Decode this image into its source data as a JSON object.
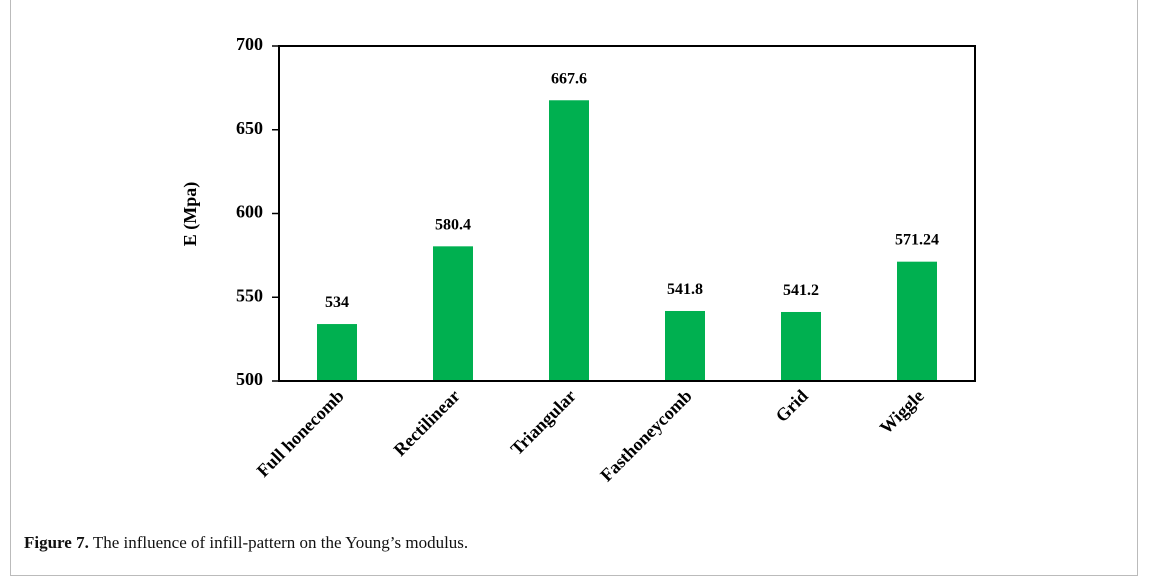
{
  "chart_data": {
    "type": "bar",
    "ylabel": "E (Mpa)",
    "categories": [
      "Full honecomb",
      "Rectilinear",
      "Triangular",
      "Fasthoneycomb",
      "Grid",
      "Wiggle"
    ],
    "values": [
      534,
      580.4,
      667.6,
      541.8,
      541.2,
      571.24
    ],
    "color": "#00b050",
    "ylim": [
      500,
      700
    ],
    "yticks": [
      500,
      550,
      600,
      650,
      700
    ],
    "grid": false
  },
  "caption": {
    "label": "Figure 7.",
    "text": "The influence of infill-pattern on the Young’s modulus."
  }
}
